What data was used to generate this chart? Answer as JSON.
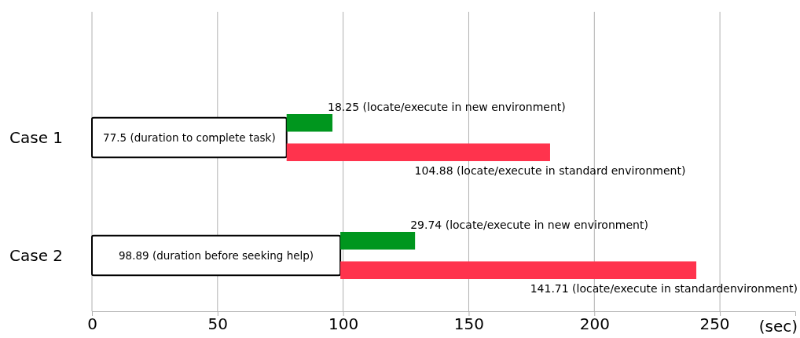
{
  "chart_data": {
    "type": "bar",
    "orientation": "horizontal",
    "categories": [
      "Case 1",
      "Case 2"
    ],
    "series": [
      {
        "color": "#ffffff",
        "values": [
          77.5,
          98.89
        ],
        "base": [
          0,
          0
        ],
        "value_labels": [
          "77.5 (duration to complete task)",
          "98.89 (duration before seeking help)"
        ]
      },
      {
        "color": "#00961e",
        "values": [
          18.25,
          29.74
        ],
        "base": [
          77.5,
          98.89
        ],
        "value_labels": [
          "18.25 (locate/execute in new environment)",
          "29.74 (locate/execute in new environment)"
        ]
      },
      {
        "color": "#ff334d",
        "values": [
          104.88,
          141.71
        ],
        "base": [
          77.5,
          98.89
        ],
        "value_labels": [
          "104.88 (locate/execute in standard environment)",
          "141.71 (locate/execute in standardenvironment)"
        ]
      }
    ],
    "xlim": [
      0,
      280
    ],
    "xticks": [
      0,
      50,
      100,
      150,
      200,
      250
    ],
    "xlabel": "(sec)",
    "grid": "x"
  }
}
